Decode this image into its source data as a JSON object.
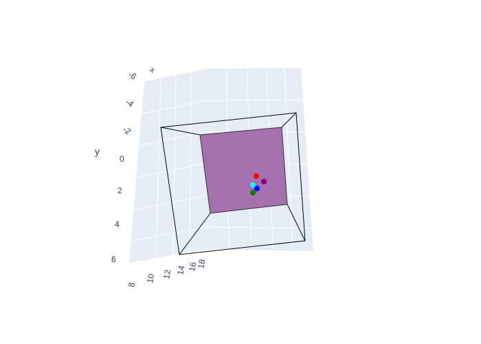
{
  "chart_data": {
    "type": "scatter3d",
    "axes": {
      "x": {
        "title": "",
        "ticks": [
          "8",
          "10",
          "12",
          "14",
          "16",
          "18"
        ]
      },
      "y": {
        "title": "y",
        "ticks": [
          "-6",
          "-4",
          "-2",
          "0",
          "2",
          "4",
          "6"
        ]
      },
      "z": {
        "title": "",
        "ticks": [
          "x"
        ]
      }
    },
    "background_color": "#e5ecf6",
    "grid": true,
    "wireframe_color": "#000000",
    "face_color": "#9b59a0",
    "points": [
      {
        "color": "#ff0000"
      },
      {
        "color": "#800080"
      },
      {
        "color": "#00ffff"
      },
      {
        "color": "#0000ff"
      },
      {
        "color": "#008000"
      }
    ]
  }
}
